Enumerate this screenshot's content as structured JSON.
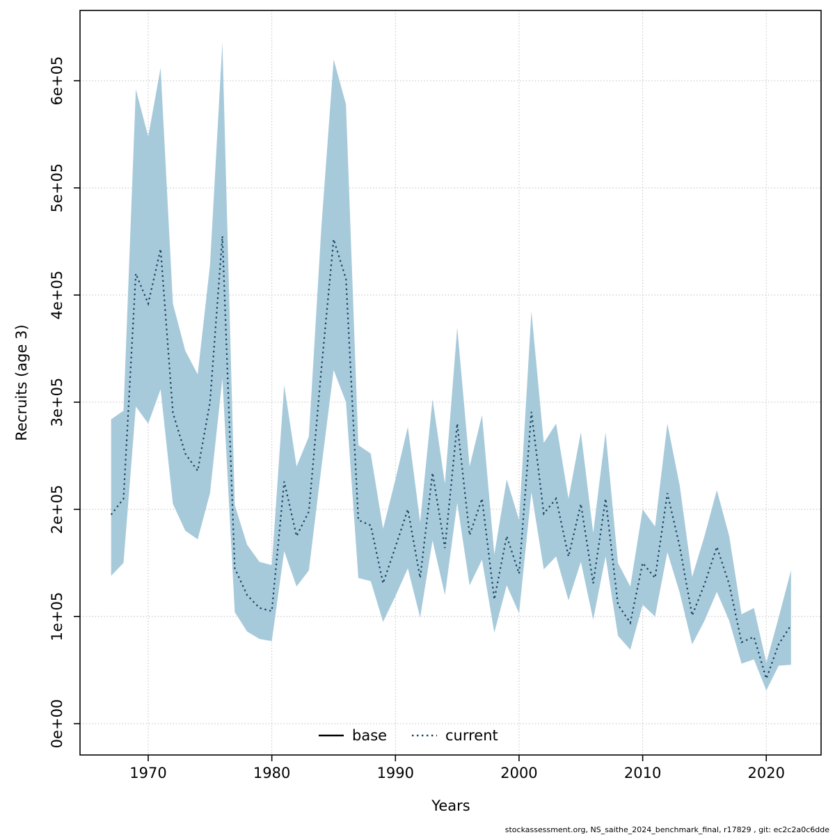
{
  "footer": "stockassessment.org, NS_saithe_2024_benchmark_final, r17829 , git: ec2c2a0c6dde",
  "axes": {
    "x_title": "Years",
    "y_title": "Recruits (age 3)",
    "x_tick_labels": [
      "1970",
      "1980",
      "1990",
      "2000",
      "2010",
      "2020"
    ],
    "x_tick_values": [
      1970,
      1980,
      1990,
      2000,
      2010,
      2020
    ],
    "y_tick_labels": [
      "0e+00",
      "1e+05",
      "2e+05",
      "3e+05",
      "4e+05",
      "5e+05",
      "6e+05"
    ],
    "y_tick_values": [
      0,
      100000,
      200000,
      300000,
      400000,
      500000,
      600000
    ],
    "grid": true
  },
  "legend": {
    "base_label": "base",
    "current_label": "current"
  },
  "colors": {
    "band_fill": "#a7cadb",
    "current_line": "#16425e",
    "base_line": "#000000",
    "grid_line": "#bdbdbd"
  },
  "chart_data": {
    "type": "line",
    "title": "",
    "xlabel": "Years",
    "ylabel": "Recruits (age 3)",
    "xlim": [
      1965.8,
      2024.4
    ],
    "ylim": [
      0,
      665000
    ],
    "legend_position": "bottom-center-inside",
    "grid": true,
    "x": [
      1967,
      1968,
      1969,
      1970,
      1971,
      1972,
      1973,
      1974,
      1975,
      1976,
      1977,
      1978,
      1979,
      1980,
      1981,
      1982,
      1983,
      1984,
      1985,
      1986,
      1987,
      1988,
      1989,
      1990,
      1991,
      1992,
      1993,
      1994,
      1995,
      1996,
      1997,
      1998,
      1999,
      2000,
      2001,
      2002,
      2003,
      2004,
      2005,
      2006,
      2007,
      2008,
      2009,
      2010,
      2011,
      2012,
      2013,
      2014,
      2015,
      2016,
      2017,
      2018,
      2019,
      2020,
      2021,
      2022
    ],
    "series": [
      {
        "name": "current",
        "style": "dotted",
        "values": [
          195000,
          210000,
          420000,
          392000,
          443000,
          290000,
          252000,
          236000,
          300000,
          455000,
          145000,
          120000,
          108000,
          105000,
          226000,
          175000,
          198000,
          330000,
          452000,
          415000,
          190000,
          185000,
          131000,
          165000,
          200000,
          136000,
          234000,
          164000,
          280000,
          176000,
          210000,
          116000,
          175000,
          140000,
          291000,
          196000,
          210000,
          156000,
          205000,
          131000,
          210000,
          111000,
          94000,
          150000,
          136000,
          215000,
          165000,
          101000,
          130000,
          165000,
          130000,
          76000,
          81000,
          42000,
          74000,
          92000
        ]
      }
    ],
    "band": {
      "name": "confidence-interval",
      "series": "current",
      "lower": [
        138000,
        150000,
        296000,
        280000,
        312000,
        205000,
        180000,
        172000,
        215000,
        322000,
        104000,
        86000,
        79000,
        77000,
        161000,
        128000,
        143000,
        238000,
        330000,
        300000,
        136000,
        133000,
        95000,
        119000,
        145000,
        99000,
        171000,
        120000,
        206000,
        129000,
        153000,
        85000,
        129000,
        103000,
        216000,
        144000,
        156000,
        115000,
        151000,
        97000,
        156000,
        82000,
        69000,
        111000,
        100000,
        160000,
        122000,
        74000,
        96000,
        123000,
        96000,
        56000,
        60000,
        31000,
        54000,
        55000
      ],
      "upper": [
        284000,
        292000,
        592000,
        548000,
        612000,
        392000,
        348000,
        326000,
        428000,
        636000,
        204000,
        167000,
        151000,
        148000,
        316000,
        240000,
        268000,
        462000,
        620000,
        578000,
        260000,
        252000,
        182000,
        228000,
        277000,
        188000,
        303000,
        224000,
        370000,
        240000,
        288000,
        158000,
        228000,
        190000,
        385000,
        262000,
        280000,
        210000,
        272000,
        178000,
        272000,
        150000,
        128000,
        200000,
        184000,
        280000,
        222000,
        137000,
        175000,
        218000,
        175000,
        102000,
        108000,
        57000,
        99000,
        143000
      ]
    }
  }
}
